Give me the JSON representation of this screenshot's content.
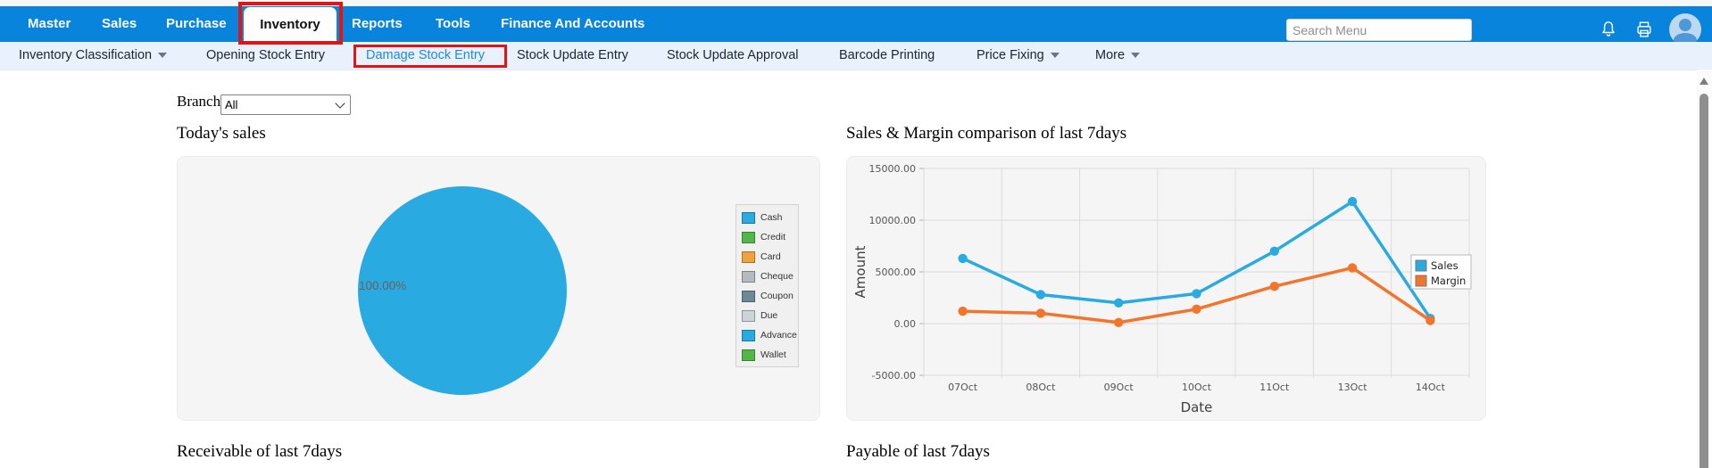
{
  "topnav": {
    "items": [
      "Master",
      "Sales",
      "Purchase",
      "Inventory",
      "Reports",
      "Tools",
      "Finance And Accounts"
    ],
    "active_item": "Inventory",
    "search_placeholder": "Search Menu",
    "icons": [
      "bell-icon",
      "printer-icon",
      "user-avatar"
    ]
  },
  "subnav": {
    "items": [
      {
        "label": "Inventory Classification",
        "caret": true,
        "highlighted": false
      },
      {
        "label": "Opening Stock Entry",
        "caret": false,
        "highlighted": false
      },
      {
        "label": "Damage Stock Entry",
        "caret": false,
        "highlighted": true
      },
      {
        "label": "Stock Update Entry",
        "caret": false,
        "highlighted": false
      },
      {
        "label": "Stock Update Approval",
        "caret": false,
        "highlighted": false
      },
      {
        "label": "Barcode Printing",
        "caret": false,
        "highlighted": false
      },
      {
        "label": "Price Fixing",
        "caret": true,
        "highlighted": false
      },
      {
        "label": "More",
        "caret": true,
        "highlighted": false
      }
    ]
  },
  "annotations": {
    "highlighted_menu": "Inventory",
    "highlighted_submenu": "Damage Stock Entry",
    "box_color": "#e01616"
  },
  "filters": {
    "branch_label": "Branch",
    "branch_value": "All"
  },
  "sections": {
    "today_sales": "Today's sales",
    "sales_margin": "Sales & Margin comparison of last 7days",
    "receivable": "Receivable of last 7days",
    "payable": "Payable of last 7days"
  },
  "colors": {
    "topbar": "#0984dc",
    "subnav_bg": "#e9f2fc",
    "active_link": "#1e88e5",
    "panel_bg": "#f5f5f6"
  },
  "chart_data": [
    {
      "type": "pie",
      "title": "Today's sales",
      "labels": [
        "Cash",
        "Credit",
        "Card",
        "Cheque",
        "Coupon",
        "Due",
        "Advance",
        "Wallet"
      ],
      "values": [
        100,
        0,
        0,
        0,
        0,
        0,
        0,
        0
      ],
      "colors": [
        "#29abe2",
        "#53b648",
        "#f0a23c",
        "#b3bac0",
        "#6d8995",
        "#ccd4da",
        "#29abe2",
        "#53b648"
      ],
      "dotted": [
        false,
        false,
        false,
        false,
        true,
        true,
        false,
        false
      ],
      "center_label": "100.00%",
      "legend_position": "right"
    },
    {
      "type": "line",
      "title": "Sales & Margin comparison of last 7days",
      "categories": [
        "07Oct",
        "08Oct",
        "09Oct",
        "10Oct",
        "11Oct",
        "13Oct",
        "14Oct"
      ],
      "series": [
        {
          "name": "Sales",
          "color": "#29abe2",
          "values": [
            6300,
            2800,
            2000,
            2900,
            7000,
            11800,
            500
          ]
        },
        {
          "name": "Margin",
          "color": "#f2752b",
          "values": [
            1200,
            1000,
            100,
            1400,
            3600,
            5400,
            300
          ]
        }
      ],
      "xlabel": "Date",
      "ylabel": "Amount",
      "ylim": [
        -5000,
        15000
      ],
      "yticks": [
        15000,
        10000,
        5000,
        0,
        -5000
      ],
      "ytick_labels": [
        "15000.00",
        "10000.00",
        "5000.00",
        "0.00",
        "-5000.00"
      ],
      "grid": true,
      "legend_position": "right"
    }
  ]
}
